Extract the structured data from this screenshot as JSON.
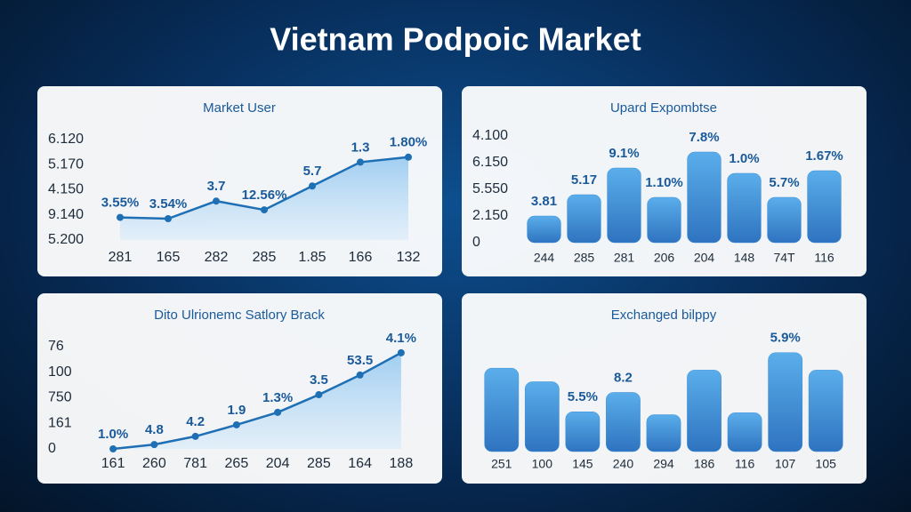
{
  "title": "Vietnam Podpoic Market",
  "chart_data": [
    {
      "type": "line",
      "title": "Market User",
      "color": "#1f6fb5",
      "categories": [
        "281",
        "165",
        "282",
        "285",
        "1.85",
        "166",
        "132"
      ],
      "values": [
        0.9,
        0.85,
        1.55,
        1.2,
        2.15,
        3.1,
        3.3
      ],
      "point_labels": [
        "3.55%",
        "3.54%",
        "3.7",
        "12.56%",
        "5.7",
        "1.3",
        "1.80%"
      ],
      "ylim": [
        0,
        4
      ],
      "yticks": [
        {
          "value": 4,
          "label": "6.120"
        },
        {
          "value": 3,
          "label": "5.170"
        },
        {
          "value": 2,
          "label": "4.150"
        },
        {
          "value": 1,
          "label": "9.140"
        },
        {
          "value": 0,
          "label": "5.200"
        }
      ]
    },
    {
      "type": "bar",
      "title": "Upard Expombtse",
      "color": "#3f8fd8",
      "categories": [
        "244",
        "285",
        "281",
        "206",
        "204",
        "148",
        "74T",
        "116"
      ],
      "values": [
        1.0,
        1.8,
        2.8,
        1.7,
        3.4,
        2.6,
        1.7,
        2.7
      ],
      "point_labels": [
        "3.81",
        "5.17",
        "9.1%",
        "1.10%",
        "7.8%",
        "1.0%",
        "5.7%",
        "1.67%"
      ],
      "ylim": [
        0,
        4
      ],
      "yticks": [
        {
          "value": 4,
          "label": "4.100"
        },
        {
          "value": 3,
          "label": "6.150"
        },
        {
          "value": 2,
          "label": "5.550"
        },
        {
          "value": 1,
          "label": "2.150"
        },
        0
      ]
    },
    {
      "type": "line",
      "title": "Dito Ulrionemc Satlory Brack",
      "color": "#1f6fb5",
      "categories": [
        "161",
        "260",
        "781",
        "265",
        "204",
        "285",
        "164",
        "188"
      ],
      "values": [
        0.0,
        0.17,
        0.49,
        0.94,
        1.43,
        2.12,
        2.89,
        3.76
      ],
      "point_labels": [
        "1.0%",
        "4.8",
        "4.2",
        "1.9",
        "1.3%",
        "3.5",
        "53.5",
        "4.1%"
      ],
      "ylim": [
        0,
        4
      ],
      "yticks": [
        {
          "value": 4,
          "label": "76"
        },
        {
          "value": 3,
          "label": "100"
        },
        {
          "value": 2,
          "label": "750"
        },
        {
          "value": 1,
          "label": "161"
        },
        0
      ]
    },
    {
      "type": "bar",
      "title": "Exchanged bilppy",
      "color": "#3f8fd8",
      "categories": [
        "251",
        "100",
        "145",
        "240",
        "294",
        "186",
        "116",
        "107",
        "105"
      ],
      "values": [
        86,
        72,
        41,
        61,
        38,
        84,
        40,
        102,
        84
      ],
      "point_labels": [
        null,
        null,
        "5.5%",
        "8.2",
        null,
        null,
        null,
        "5.9%",
        null
      ],
      "ylim": [
        0,
        110
      ]
    }
  ]
}
